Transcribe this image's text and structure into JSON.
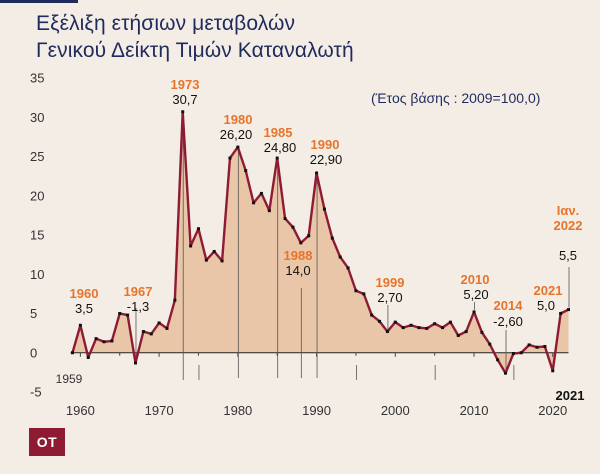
{
  "title_line1": "Εξέλιξη ετήσιων μεταβολών",
  "title_line2": "Γενικού Δείκτη Τιμών Καταναλωτή",
  "base_note": "(Έτος βάσης : 2009=100,0)",
  "logo_text": "OT",
  "colors": {
    "line": "#8e1b33",
    "area": "#e9c6a8",
    "year_label": "#e8742a",
    "text": "#1f2b5c"
  },
  "chart_data": {
    "type": "area",
    "title": "Εξέλιξη ετήσιων μεταβολών Γενικού Δείκτη Τιμών Καταναλωτή",
    "x": [
      1959,
      1960,
      1961,
      1962,
      1963,
      1964,
      1965,
      1966,
      1967,
      1968,
      1969,
      1970,
      1971,
      1972,
      1973,
      1974,
      1975,
      1976,
      1977,
      1978,
      1979,
      1980,
      1981,
      1982,
      1983,
      1984,
      1985,
      1986,
      1987,
      1988,
      1989,
      1990,
      1991,
      1992,
      1993,
      1994,
      1995,
      1996,
      1997,
      1998,
      1999,
      2000,
      2001,
      2002,
      2003,
      2004,
      2005,
      2006,
      2007,
      2008,
      2009,
      2010,
      2011,
      2012,
      2013,
      2014,
      2015,
      2016,
      2017,
      2018,
      2019,
      2020,
      2021,
      2022
    ],
    "y": [
      0,
      3.5,
      -0.6,
      1.8,
      1.4,
      1.5,
      5,
      4.8,
      -1.3,
      2.7,
      2.4,
      3.8,
      3.1,
      6.7,
      30.7,
      13.6,
      15.8,
      11.8,
      12.9,
      11.7,
      24.8,
      26.2,
      23.2,
      19.1,
      20.3,
      18.1,
      24.8,
      17.1,
      16.0,
      14.0,
      14.9,
      22.9,
      18.3,
      14.6,
      12.2,
      10.8,
      7.9,
      7.5,
      4.8,
      4.0,
      2.7,
      3.9,
      3.2,
      3.5,
      3.2,
      3.1,
      3.7,
      3.2,
      3.9,
      2.2,
      2.7,
      5.2,
      2.6,
      1.1,
      -0.9,
      -2.6,
      -0.1,
      0.0,
      1.0,
      0.7,
      0.8,
      -2.3,
      5.0,
      5.5
    ],
    "xlim": [
      1959,
      2022
    ],
    "ylim": [
      -5,
      35
    ],
    "x_ticks": [
      "1960",
      "1970",
      "1980",
      "1990",
      "2000",
      "2010",
      "2020"
    ],
    "y_ticks": [
      "35",
      "30",
      "25",
      "20",
      "15",
      "10",
      "5",
      "0",
      "-5"
    ],
    "grid": false,
    "annotations": [
      {
        "year": "1959",
        "value": "",
        "year_label_color": "dark"
      },
      {
        "year": "1960",
        "value": "3,5"
      },
      {
        "year": "1967",
        "value": "-1,3"
      },
      {
        "year": "1973",
        "value": "30,7"
      },
      {
        "year": "1980",
        "value": "26,20"
      },
      {
        "year": "1985",
        "value": "24,80"
      },
      {
        "year": "1988",
        "value": "14,0"
      },
      {
        "year": "1990",
        "value": "22,90"
      },
      {
        "year": "1999",
        "value": "2,70"
      },
      {
        "year": "2010",
        "value": "5,20"
      },
      {
        "year": "2014",
        "value": "-2,60"
      },
      {
        "year": "2021",
        "value": "5,0"
      },
      {
        "year": "Ιαν. 2022",
        "value": "5,5"
      },
      {
        "year": "2021",
        "value": "",
        "year_label_color": "bold-dark"
      }
    ]
  }
}
